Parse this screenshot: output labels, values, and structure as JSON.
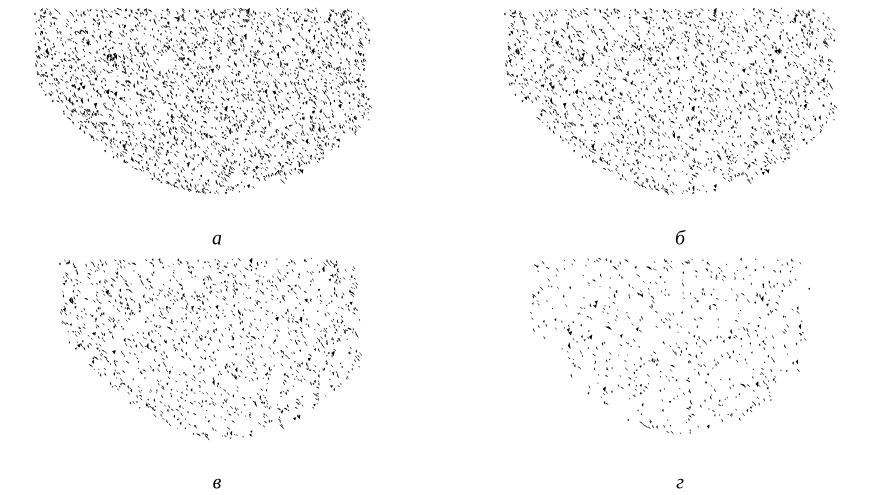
{
  "figure": {
    "panels": [
      {
        "label": "а"
      },
      {
        "label": "б"
      },
      {
        "label": "в"
      },
      {
        "label": "г"
      }
    ]
  }
}
